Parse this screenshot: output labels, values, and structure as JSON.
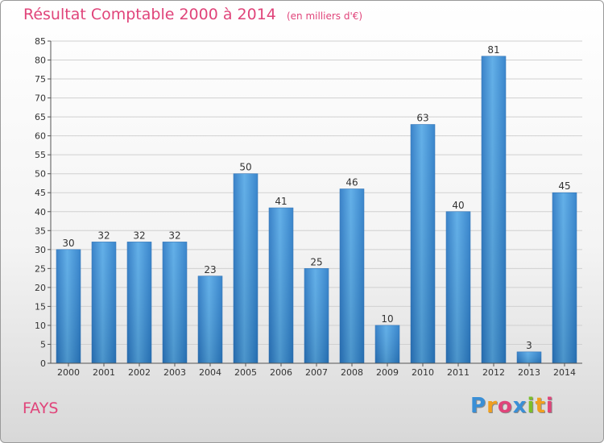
{
  "title": "Résultat Comptable 2000 à 2014",
  "subtitle": "(en milliers d'€)",
  "commune": "FAYS",
  "logo": "Proxiti",
  "colors": {
    "bar": "#3a8fd6",
    "title": "#e0447a",
    "grid": "#d0d0d0"
  },
  "chart_data": {
    "type": "bar",
    "title": "Résultat Comptable 2000 à 2014",
    "subtitle": "(en milliers d'€)",
    "categories": [
      "2000",
      "2001",
      "2002",
      "2003",
      "2004",
      "2005",
      "2006",
      "2007",
      "2008",
      "2009",
      "2010",
      "2011",
      "2012",
      "2013",
      "2014"
    ],
    "values": [
      30,
      32,
      32,
      32,
      23,
      50,
      41,
      25,
      46,
      10,
      63,
      40,
      81,
      3,
      45
    ],
    "xlabel": "",
    "ylabel": "",
    "ylim": [
      0,
      85
    ],
    "yticks": [
      0,
      5,
      10,
      15,
      20,
      25,
      30,
      35,
      40,
      45,
      50,
      55,
      60,
      65,
      70,
      75,
      80,
      85
    ],
    "grid": true,
    "data_labels": true
  }
}
